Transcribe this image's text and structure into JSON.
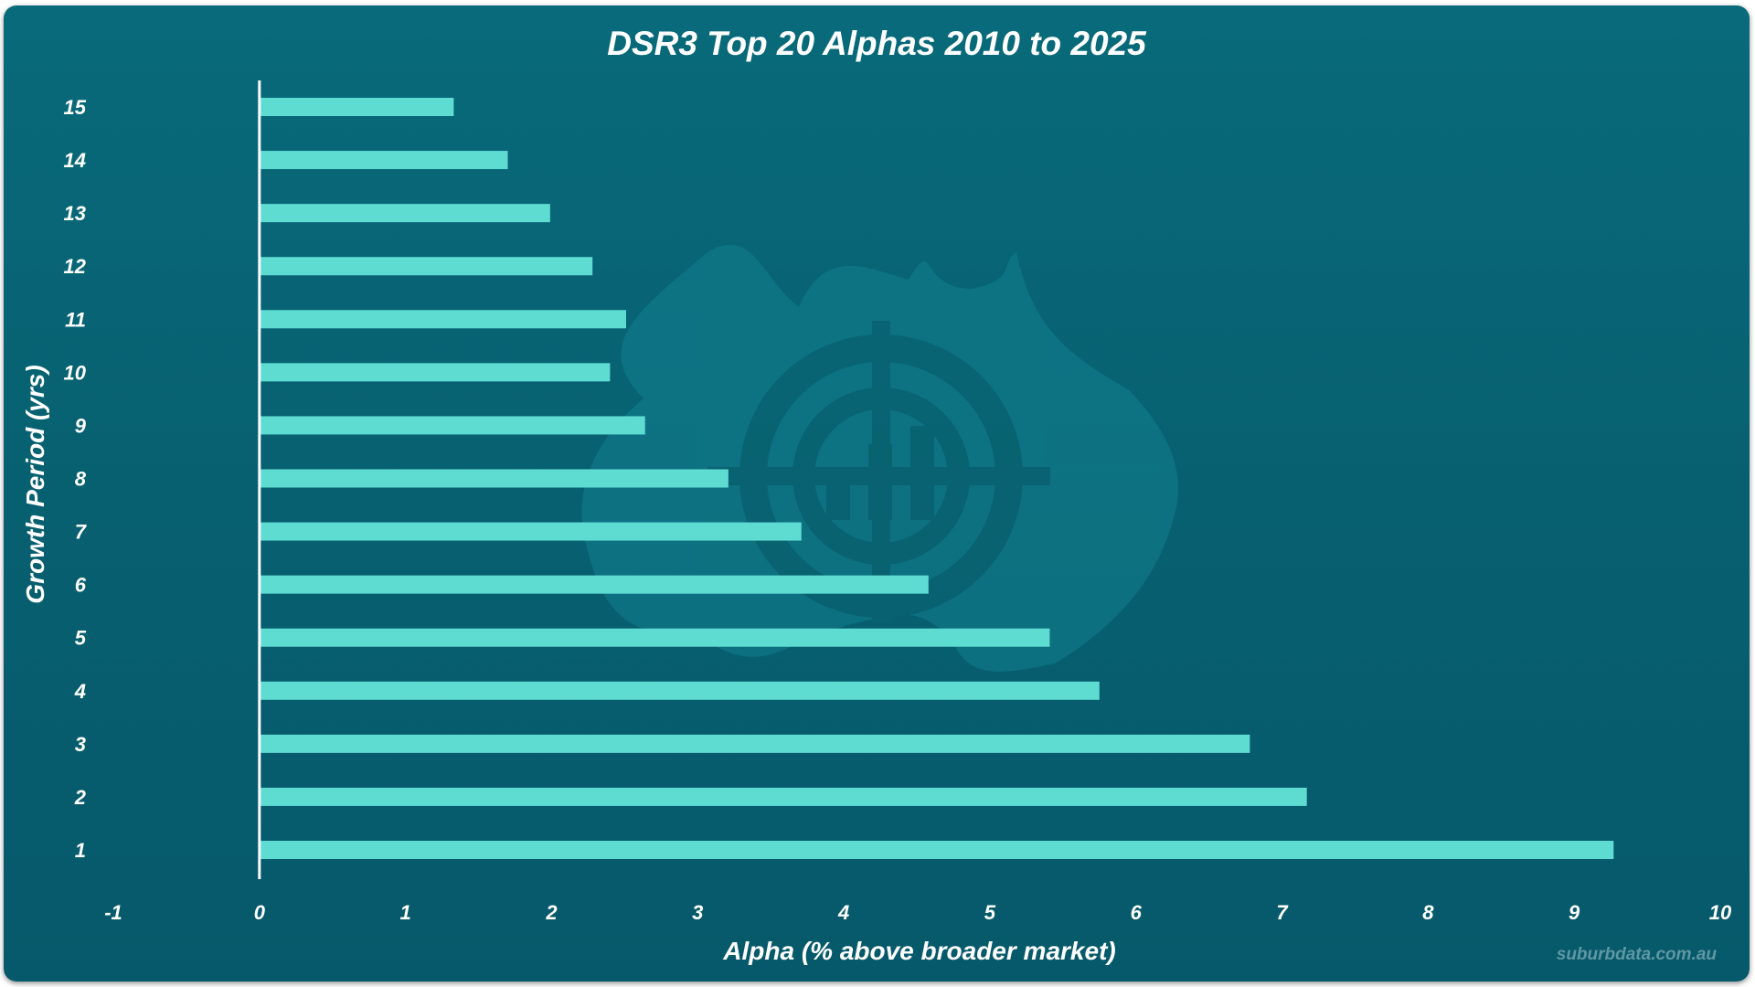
{
  "chart_data": {
    "type": "bar",
    "orientation": "horizontal",
    "title": "DSR3 Top 20 Alphas 2010 to 2025",
    "xlabel": "Alpha (% above broader market)",
    "ylabel": "Growth Period (yrs)",
    "categories": [
      "1",
      "2",
      "3",
      "4",
      "5",
      "6",
      "7",
      "8",
      "9",
      "10",
      "11",
      "12",
      "13",
      "14",
      "15"
    ],
    "values": [
      9.27,
      7.17,
      6.78,
      5.75,
      5.41,
      4.58,
      3.71,
      3.21,
      2.64,
      2.4,
      2.51,
      2.28,
      1.99,
      1.7,
      1.33
    ],
    "xlim": [
      -1,
      10
    ],
    "xticks": [
      "-1",
      "0",
      "1",
      "2",
      "3",
      "4",
      "5",
      "6",
      "7",
      "8",
      "9",
      "10"
    ],
    "grid": false,
    "legend": "none"
  },
  "watermark": {
    "text": "suburbdata.com.au",
    "logo_icon": "australia-target-logo-icon"
  },
  "colors": {
    "background": "#086a7a",
    "bar": "#5edcd2",
    "axis": "#ffffff",
    "text": "#ffffff",
    "watermark": "#5f97a3"
  }
}
